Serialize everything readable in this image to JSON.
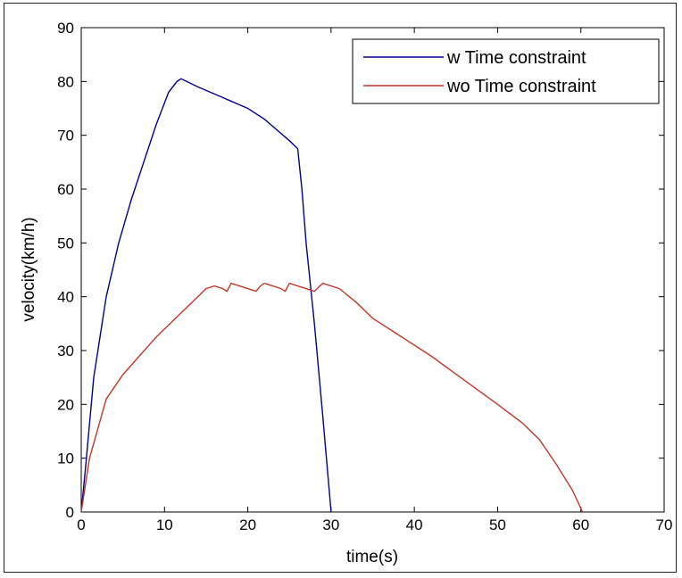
{
  "chart_data": {
    "type": "line",
    "title": "",
    "xlabel": "time(s)",
    "ylabel": "velocity(km/h)",
    "xlim": [
      0,
      70
    ],
    "ylim": [
      0,
      90
    ],
    "xticks": [
      0,
      10,
      20,
      30,
      40,
      50,
      60,
      70
    ],
    "yticks": [
      0,
      10,
      20,
      30,
      40,
      50,
      60,
      70,
      80,
      90
    ],
    "grid": false,
    "legend_position": "top-right",
    "series": [
      {
        "name": "w Time constraint",
        "color": "#00008b",
        "x": [
          0,
          0.5,
          1.5,
          3,
          4.5,
          6,
          7.5,
          9,
          10.5,
          11.5,
          12,
          14,
          17,
          20,
          22,
          23.5,
          25,
          26,
          26.5,
          27,
          28,
          29,
          30
        ],
        "y": [
          0,
          8,
          25,
          40,
          50,
          58,
          65,
          72,
          78,
          80,
          80.5,
          79,
          77,
          75,
          73,
          71,
          69,
          67.5,
          60,
          50,
          35,
          18,
          0
        ]
      },
      {
        "name": "wo Time constraint",
        "color": "#c0392b",
        "x": [
          0,
          1,
          3,
          5,
          7,
          9,
          11,
          13,
          15,
          16,
          17,
          17.5,
          18,
          19,
          20,
          21,
          21.5,
          22,
          23,
          24,
          24.5,
          25,
          26,
          27,
          28,
          29,
          31,
          33,
          35,
          38,
          42,
          46,
          50,
          53,
          55,
          57,
          59,
          60.2
        ],
        "y": [
          0,
          10,
          21,
          25.5,
          29,
          32.5,
          35.5,
          38.5,
          41.5,
          42,
          41.5,
          41,
          42.5,
          42,
          41.5,
          41,
          42,
          42.5,
          42,
          41.5,
          41,
          42.5,
          42,
          41.5,
          41,
          42.5,
          41.5,
          39,
          36,
          33,
          29,
          24.5,
          20,
          16.5,
          13.5,
          9,
          4,
          0
        ]
      }
    ]
  }
}
